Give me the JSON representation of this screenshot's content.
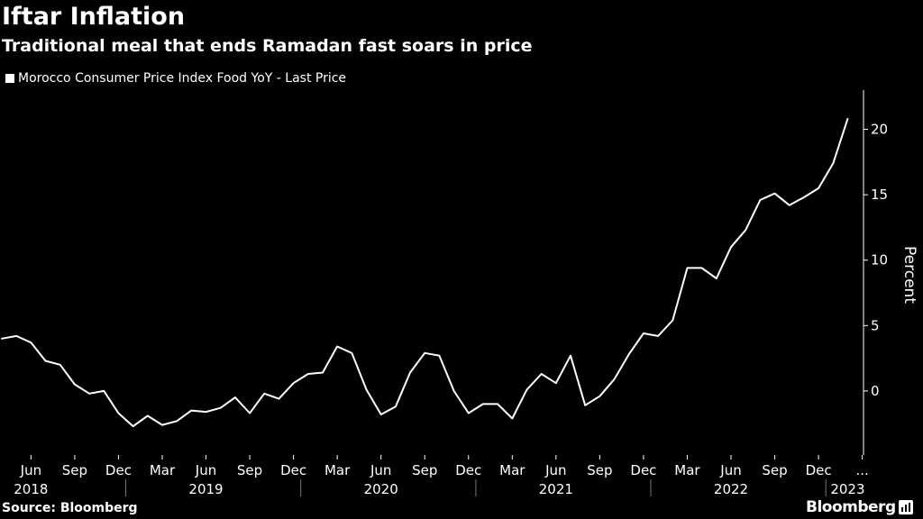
{
  "header": {
    "title": "Iftar Inflation",
    "subtitle": "Traditional meal that ends Ramadan fast soars in price"
  },
  "footer": {
    "source": "Source: Bloomberg",
    "brand": "Bloomberg"
  },
  "colors": {
    "background": "#000000",
    "line": "#ffffff",
    "axis": "#ffffff"
  },
  "chart_data": {
    "type": "line",
    "title": "Iftar Inflation",
    "subtitle": "Traditional meal that ends Ramadan fast soars in price",
    "ylabel": "Percent",
    "xlabel": "",
    "ylim": [
      -4.9,
      23
    ],
    "y_ticks": [
      0,
      5,
      10,
      15,
      20
    ],
    "grid": false,
    "legend_position": "top-left",
    "x_tick_labels": [
      {
        "date": "2018-06",
        "label": "Jun"
      },
      {
        "date": "2018-09",
        "label": "Sep"
      },
      {
        "date": "2018-12",
        "label": "Dec"
      },
      {
        "date": "2019-03",
        "label": "Mar"
      },
      {
        "date": "2019-06",
        "label": "Jun"
      },
      {
        "date": "2019-09",
        "label": "Sep"
      },
      {
        "date": "2019-12",
        "label": "Dec"
      },
      {
        "date": "2020-03",
        "label": "Mar"
      },
      {
        "date": "2020-06",
        "label": "Jun"
      },
      {
        "date": "2020-09",
        "label": "Sep"
      },
      {
        "date": "2020-12",
        "label": "Dec"
      },
      {
        "date": "2021-03",
        "label": "Mar"
      },
      {
        "date": "2021-06",
        "label": "Jun"
      },
      {
        "date": "2021-09",
        "label": "Sep"
      },
      {
        "date": "2021-12",
        "label": "Dec"
      },
      {
        "date": "2022-03",
        "label": "Mar"
      },
      {
        "date": "2022-06",
        "label": "Jun"
      },
      {
        "date": "2022-09",
        "label": "Sep"
      },
      {
        "date": "2022-12",
        "label": "Dec"
      },
      {
        "date": "2023-03",
        "label": "..."
      }
    ],
    "years": [
      {
        "year": "2018",
        "center": "2018-06"
      },
      {
        "year": "2019",
        "center": "2019-06"
      },
      {
        "year": "2020",
        "center": "2020-06"
      },
      {
        "year": "2021",
        "center": "2021-06"
      },
      {
        "year": "2022",
        "center": "2022-06"
      },
      {
        "year": "2023",
        "center": "2023-02"
      }
    ],
    "series": [
      {
        "name": "Morocco Consumer Price Index Food YoY - Last Price",
        "color": "#ffffff",
        "x": [
          "2018-04",
          "2018-05",
          "2018-06",
          "2018-07",
          "2018-08",
          "2018-09",
          "2018-10",
          "2018-11",
          "2018-12",
          "2019-01",
          "2019-02",
          "2019-03",
          "2019-04",
          "2019-05",
          "2019-06",
          "2019-07",
          "2019-08",
          "2019-09",
          "2019-10",
          "2019-11",
          "2019-12",
          "2020-01",
          "2020-02",
          "2020-03",
          "2020-04",
          "2020-05",
          "2020-06",
          "2020-07",
          "2020-08",
          "2020-09",
          "2020-10",
          "2020-11",
          "2020-12",
          "2021-01",
          "2021-02",
          "2021-03",
          "2021-04",
          "2021-05",
          "2021-06",
          "2021-07",
          "2021-08",
          "2021-09",
          "2021-10",
          "2021-11",
          "2021-12",
          "2022-01",
          "2022-02",
          "2022-03",
          "2022-04",
          "2022-05",
          "2022-06",
          "2022-07",
          "2022-08",
          "2022-09",
          "2022-10",
          "2022-11",
          "2022-12",
          "2023-01",
          "2023-02"
        ],
        "values": [
          4.0,
          4.2,
          3.7,
          2.3,
          2.0,
          0.5,
          -0.2,
          0.0,
          -1.7,
          -2.7,
          -1.9,
          -2.6,
          -2.3,
          -1.5,
          -1.6,
          -1.3,
          -0.5,
          -1.7,
          -0.2,
          -0.6,
          0.6,
          1.3,
          1.4,
          3.4,
          2.9,
          0.1,
          -1.8,
          -1.2,
          1.4,
          2.9,
          2.7,
          0.0,
          -1.7,
          -1.0,
          -1.0,
          -2.1,
          0.1,
          1.3,
          0.6,
          2.7,
          -1.1,
          -0.4,
          0.9,
          2.8,
          4.4,
          4.2,
          5.4,
          9.4,
          9.4,
          8.6,
          11.0,
          12.3,
          14.6,
          15.1,
          14.2,
          14.8,
          15.5,
          17.4,
          20.8
        ]
      }
    ]
  }
}
